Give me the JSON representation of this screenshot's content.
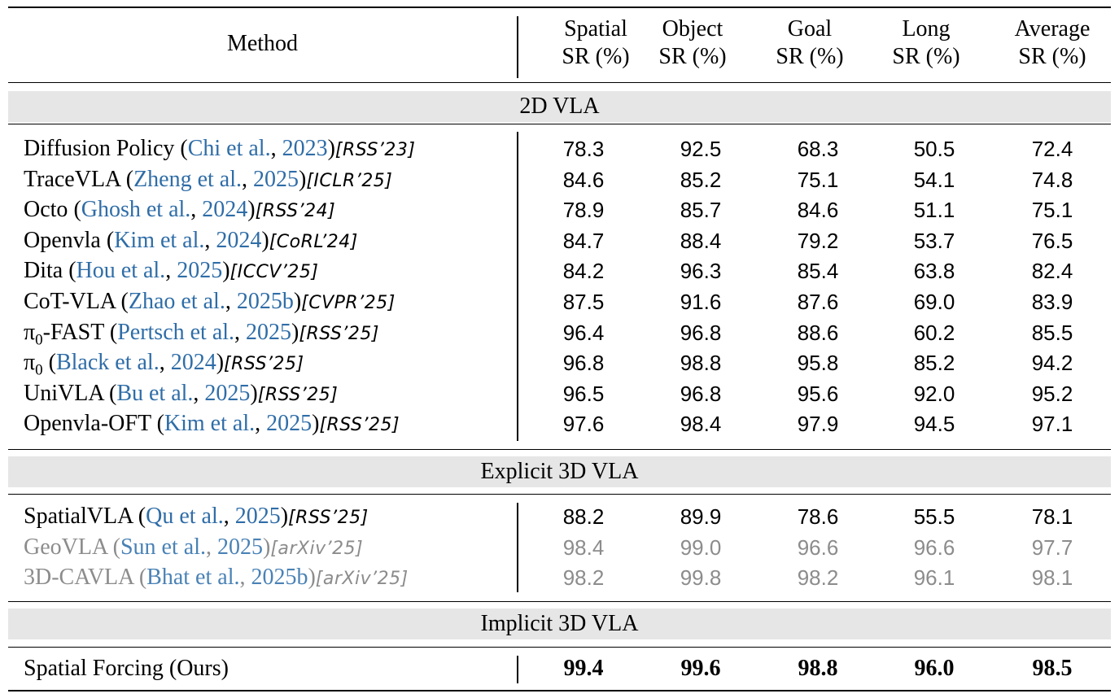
{
  "header": {
    "method": "Method",
    "columns": [
      {
        "line1": "Spatial",
        "line2": "SR (%)"
      },
      {
        "line1": "Object",
        "line2": "SR (%)"
      },
      {
        "line1": "Goal",
        "line2": "SR (%)"
      },
      {
        "line1": "Long",
        "line2": "SR (%)"
      },
      {
        "line1": "Average",
        "line2": "SR (%)"
      }
    ]
  },
  "sections": [
    {
      "label": "2D VLA",
      "rows": [
        {
          "name": "Diffusion Policy",
          "author": "Chi et al.",
          "year": "2023",
          "venue": "[RSS’23]",
          "values": [
            "78.3",
            "92.5",
            "68.3",
            "50.5",
            "72.4"
          ]
        },
        {
          "name": "TraceVLA",
          "author": "Zheng et al.",
          "year": "2025",
          "venue": "[ICLR’25]",
          "values": [
            "84.6",
            "85.2",
            "75.1",
            "54.1",
            "74.8"
          ]
        },
        {
          "name": "Octo",
          "author": "Ghosh et al.",
          "year": "2024",
          "venue": "[RSS’24]",
          "values": [
            "78.9",
            "85.7",
            "84.6",
            "51.1",
            "75.1"
          ]
        },
        {
          "name": "Openvla",
          "author": "Kim et al.",
          "year": "2024",
          "venue": "[CoRL’24]",
          "values": [
            "84.7",
            "88.4",
            "79.2",
            "53.7",
            "76.5"
          ]
        },
        {
          "name": "Dita",
          "author": "Hou et al.",
          "year": "2025",
          "venue": "[ICCV’25]",
          "values": [
            "84.2",
            "96.3",
            "85.4",
            "63.8",
            "82.4"
          ]
        },
        {
          "name": "CoT-VLA",
          "author": "Zhao et al.",
          "year": "2025b",
          "venue": "[CVPR’25]",
          "values": [
            "87.5",
            "91.6",
            "87.6",
            "69.0",
            "83.9"
          ]
        },
        {
          "name": "π",
          "sub": "0",
          "suffix": "-FAST",
          "author": "Pertsch et al.",
          "year": "2025",
          "venue": "[RSS’25]",
          "values": [
            "96.4",
            "96.8",
            "88.6",
            "60.2",
            "85.5"
          ]
        },
        {
          "name": "π",
          "sub": "0",
          "suffix": "",
          "author": "Black et al.",
          "year": "2024",
          "venue": "[RSS’25]",
          "values": [
            "96.8",
            "98.8",
            "95.8",
            "85.2",
            "94.2"
          ]
        },
        {
          "name": "UniVLA",
          "author": "Bu et al.",
          "year": "2025",
          "venue": "[RSS’25]",
          "values": [
            "96.5",
            "96.8",
            "95.6",
            "92.0",
            "95.2"
          ]
        },
        {
          "name": "Openvla-OFT",
          "author": "Kim et al.",
          "year": "2025",
          "venue": "[RSS’25]",
          "values": [
            "97.6",
            "98.4",
            "97.9",
            "94.5",
            "97.1"
          ]
        }
      ]
    },
    {
      "label": "Explicit 3D VLA",
      "rows": [
        {
          "name": "SpatialVLA",
          "author": "Qu et al.",
          "year": "2025",
          "venue": "[RSS’25]",
          "values": [
            "88.2",
            "89.9",
            "78.6",
            "55.5",
            "78.1"
          ]
        },
        {
          "name": "GeoVLA",
          "author": "Sun et al.",
          "year": "2025",
          "venue": "[arXiv’25]",
          "values": [
            "98.4",
            "99.0",
            "96.6",
            "96.6",
            "97.7"
          ],
          "muted": true
        },
        {
          "name": "3D-CAVLA",
          "author": "Bhat et al.",
          "year": "2025b",
          "venue": "[arXiv’25]",
          "values": [
            "98.2",
            "99.8",
            "98.2",
            "96.1",
            "98.1"
          ],
          "muted": true
        }
      ]
    },
    {
      "label": "Implicit 3D VLA",
      "rows": [
        {
          "name": "Spatial Forcing (Ours)",
          "values": [
            "99.4",
            "99.6",
            "98.8",
            "96.0",
            "98.5"
          ],
          "bold": true
        }
      ]
    }
  ],
  "colors": {
    "citation": "#2f6da7",
    "muted": "#8c8c8c",
    "band": "#e6e6e6"
  }
}
